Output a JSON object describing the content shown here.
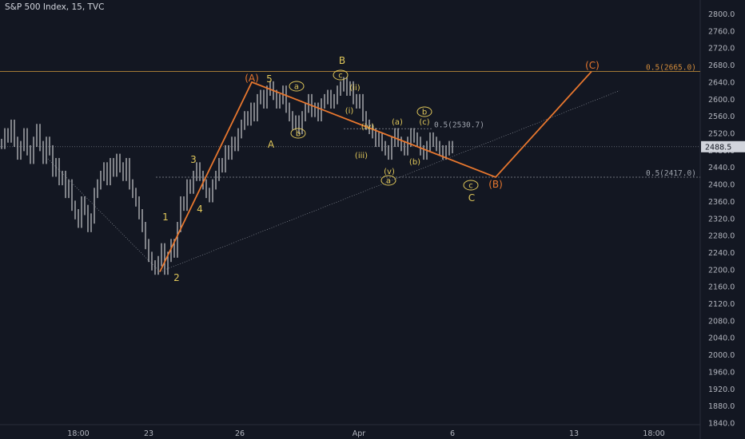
{
  "header": {
    "title": "S&P 500 Index, 15, TVC"
  },
  "colors": {
    "bg": "#131722",
    "candle": "#c8c9cc",
    "orange": "#e8772e",
    "yellow": "#e0c75a",
    "grid": "#1f2433",
    "axis": "#b2b5be"
  },
  "chart_data": {
    "type": "line",
    "title": "S&P 500 Index, 15, TVC",
    "ylim": [
      1820,
      2820
    ],
    "y_ticks": [
      "2800.0",
      "2760.0",
      "2720.0",
      "2680.0",
      "2640.0",
      "2600.0",
      "2560.0",
      "2520.0",
      "2480.0",
      "2440.0",
      "2400.0",
      "2360.0",
      "2320.0",
      "2280.0",
      "2240.0",
      "2200.0",
      "2160.0",
      "2120.0",
      "2080.0",
      "2040.0",
      "2000.0",
      "1960.0",
      "1920.0",
      "1880.0",
      "1840.0"
    ],
    "x_ticks": [
      "18:00",
      "23",
      "26",
      "Apr",
      "6",
      "13",
      "18:00"
    ],
    "last_price": "2488.5",
    "series": [
      {
        "name": "",
        "values": [
          2495,
          2520,
          2510,
          2540,
          2500,
          2470,
          2490,
          2520,
          2480,
          2460,
          2500,
          2530,
          2490,
          2460,
          2500,
          2480,
          2430,
          2450,
          2410,
          2420,
          2380,
          2400,
          2350,
          2330,
          2310,
          2360,
          2340,
          2300,
          2320,
          2380,
          2400,
          2420,
          2440,
          2410,
          2450,
          2430,
          2460,
          2440,
          2420,
          2450,
          2400,
          2380,
          2360,
          2330,
          2300,
          2260,
          2230,
          2210,
          2200,
          2220,
          2250,
          2200,
          2230,
          2260,
          2240,
          2300,
          2360,
          2350,
          2400,
          2390,
          2420,
          2440,
          2420,
          2400,
          2380,
          2370,
          2400,
          2420,
          2450,
          2440,
          2480,
          2470,
          2500,
          2490,
          2520,
          2540,
          2560,
          2550,
          2580,
          2560,
          2600,
          2610,
          2590,
          2620,
          2630,
          2610,
          2590,
          2600,
          2620,
          2580,
          2560,
          2540,
          2550,
          2530,
          2560,
          2580,
          2600,
          2570,
          2580,
          2560,
          2590,
          2600,
          2610,
          2590,
          2600,
          2620,
          2630,
          2640,
          2620,
          2630,
          2600,
          2590,
          2600,
          2560,
          2540,
          2530,
          2520,
          2500,
          2510,
          2490,
          2480,
          2470,
          2500,
          2520,
          2500,
          2490,
          2480,
          2500,
          2520,
          2510,
          2500,
          2480,
          2470,
          2490,
          2510,
          2500,
          2490,
          2480,
          2470,
          2480,
          2490,
          2485
        ]
      }
    ],
    "wave_lines": {
      "orange": [
        [
          2195,
          "1"
        ],
        [
          2640,
          "(A)"
        ],
        [
          2420,
          "(B)"
        ],
        [
          2665,
          "(C)"
        ]
      ]
    },
    "fib_levels": [
      {
        "label": "0.5(2665.0)",
        "value": 2665
      },
      {
        "label": "0.5(2530.7)",
        "value": 2530.7
      },
      {
        "label": "0.5(2417.0)",
        "value": 2417
      }
    ],
    "wave_labels": {
      "big_orange": [
        "(A)",
        "(B)",
        "(C)"
      ],
      "numbers": [
        "1",
        "2",
        "3",
        "4",
        "5"
      ],
      "letters": [
        "A",
        "B",
        "C"
      ],
      "small": [
        "(ii)",
        "(i)",
        "(iv)",
        "(iii)",
        "(v)",
        "(a)",
        "(b)",
        "(c)"
      ],
      "circled": [
        "a",
        "b",
        "c",
        "a",
        "b",
        "c",
        "c"
      ]
    }
  }
}
